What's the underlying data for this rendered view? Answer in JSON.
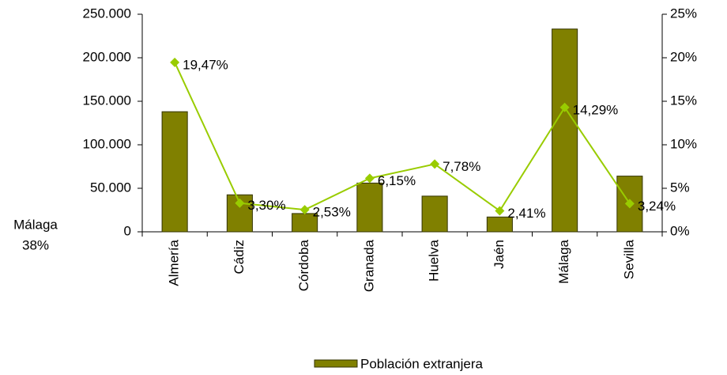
{
  "chart_data": {
    "type": "bar",
    "categories": [
      "Almería",
      "Cádiz",
      "Córdoba",
      "Granada",
      "Huelva",
      "Jaén",
      "Málaga",
      "Sevilla"
    ],
    "series": [
      {
        "name": "Población extranjera",
        "color": "#808000",
        "type": "bar",
        "values": [
          138000,
          42500,
          21000,
          56000,
          41000,
          17000,
          233000,
          64000
        ]
      },
      {
        "type": "line",
        "axis": "y2",
        "color": "#99cc00",
        "values": [
          19.47,
          3.3,
          2.53,
          6.15,
          7.78,
          2.41,
          14.29,
          3.24
        ],
        "value_labels": [
          "19,47%",
          "3,30%",
          "2,53%",
          "6,15%",
          "7,78%",
          "2,41%",
          "14,29%",
          "3,24%"
        ]
      }
    ],
    "ylim": [
      0,
      250000
    ],
    "yticks": [
      0,
      {
        "value": 50000,
        "label": "50.000"
      },
      {
        "value": 100000,
        "label": "100.000"
      },
      {
        "value": 150000,
        "label": "150.000"
      },
      {
        "value": 200000,
        "label": "200.000"
      },
      {
        "value": 250000,
        "label": "250.000"
      }
    ],
    "y2lim": [
      0,
      25
    ],
    "y2ticks": [
      {
        "value": 0,
        "label": "0%"
      },
      {
        "value": 5,
        "label": "5%"
      },
      {
        "value": 10,
        "label": "10%"
      },
      {
        "value": 15,
        "label": "15%"
      },
      {
        "value": 20,
        "label": "20%"
      },
      {
        "value": 25,
        "label": "25%"
      }
    ],
    "annotations": [
      "Málaga",
      "38%"
    ],
    "legend": "bottom"
  }
}
